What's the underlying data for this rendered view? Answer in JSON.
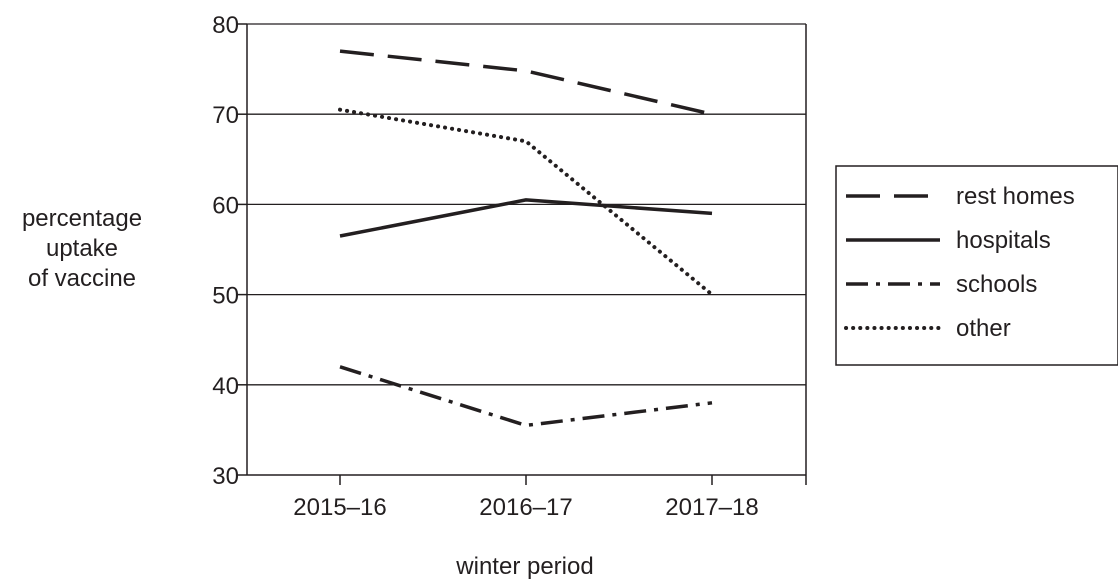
{
  "chart_data": {
    "type": "line",
    "categories": [
      "2015–16",
      "2016–17",
      "2017–18"
    ],
    "xlabel": "winter period",
    "ylabel": [
      "percentage",
      "uptake",
      "of vaccine"
    ],
    "ylim": [
      30,
      80
    ],
    "yticks": [
      30,
      40,
      50,
      60,
      70,
      80
    ],
    "grid": "horizontal",
    "legend_position": "right",
    "series": [
      {
        "name": "rest homes",
        "style": "dashed",
        "values": [
          77,
          74.8,
          70
        ]
      },
      {
        "name": "hospitals",
        "style": "solid",
        "values": [
          56.5,
          60.5,
          59
        ]
      },
      {
        "name": "schools",
        "style": "dash-dot",
        "values": [
          42,
          35.5,
          38
        ]
      },
      {
        "name": "other",
        "style": "dotted",
        "values": [
          70.5,
          67,
          50
        ]
      }
    ]
  }
}
